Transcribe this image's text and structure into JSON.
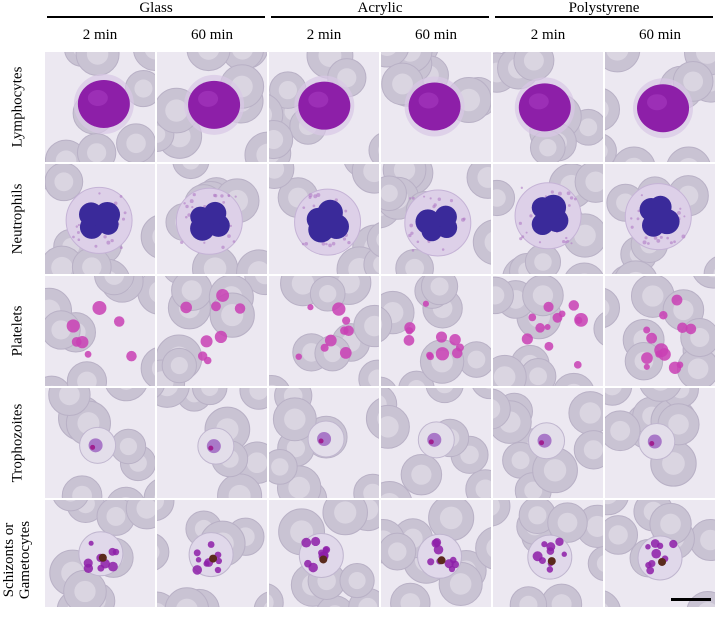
{
  "groups": [
    {
      "label": "Glass"
    },
    {
      "label": "Acrylic"
    },
    {
      "label": "Polystyrene"
    }
  ],
  "columns": [
    {
      "label": "2 min"
    },
    {
      "label": "60 min"
    },
    {
      "label": "2 min"
    },
    {
      "label": "60 min"
    },
    {
      "label": "2 min"
    },
    {
      "label": "60 min"
    }
  ],
  "rows": [
    {
      "label": "Lymphocytes"
    },
    {
      "label": "Neutrophils"
    },
    {
      "label": "Platelets"
    },
    {
      "label": "Trophozoites"
    },
    {
      "label": "Schizonts or\nGametocytes"
    }
  ],
  "colors": {
    "background": "#ece8f1",
    "rbc": "#c9c3d3",
    "rbc_center": "#ded9e5",
    "nucleus": "#8d1fa8",
    "nucleus_dark": "#3a2a9a",
    "cytoplasm": "#d9c8e6",
    "platelet": "#c93fb4",
    "pigment": "#5a2a1c"
  },
  "scale_bar": true
}
